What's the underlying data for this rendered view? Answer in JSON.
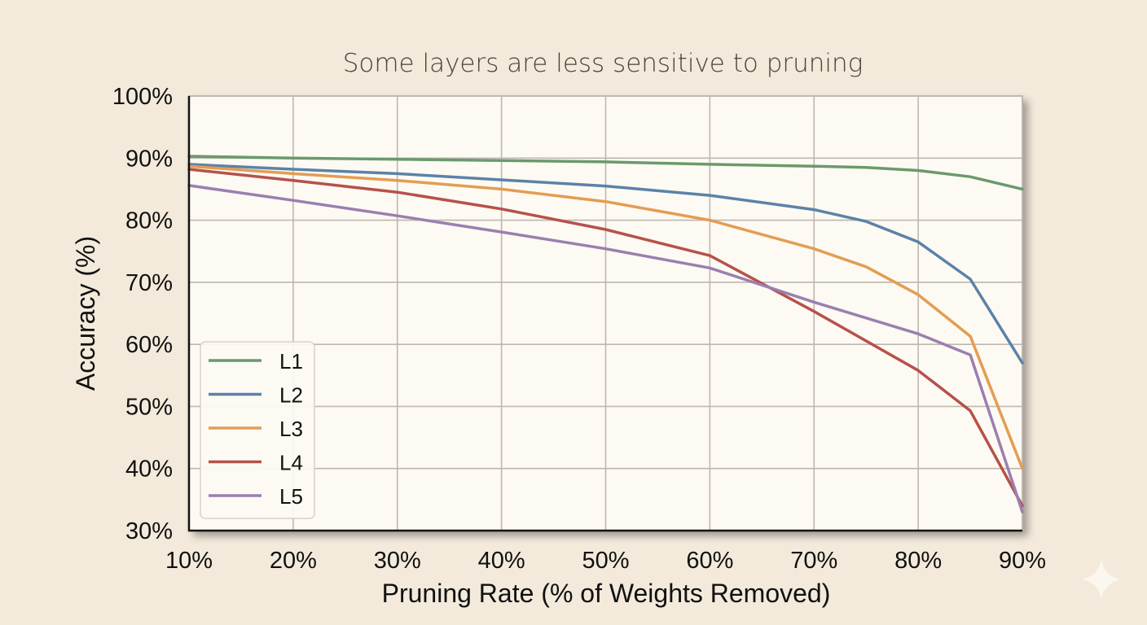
{
  "chart_data": {
    "type": "line",
    "title": "Some layers are less sensitive to pruning",
    "xlabel": "Pruning Rate (% of Weights Removed)",
    "ylabel": "Accuracy (%)",
    "xlim": [
      10,
      90
    ],
    "ylim": [
      30,
      100
    ],
    "x_ticks": [
      10,
      20,
      30,
      40,
      50,
      60,
      70,
      80,
      90
    ],
    "x_tick_labels": [
      "10%",
      "20%",
      "30%",
      "40%",
      "50%",
      "60%",
      "70%",
      "80%",
      "90%"
    ],
    "y_ticks": [
      30,
      40,
      50,
      60,
      70,
      80,
      90,
      100
    ],
    "y_tick_labels": [
      "30%",
      "40%",
      "50%",
      "60%",
      "70%",
      "80%",
      "90%",
      "100%"
    ],
    "grid": true,
    "legend_position": "lower-left",
    "series": [
      {
        "name": "L1",
        "color": "#6a9a6a",
        "x": [
          10,
          20,
          30,
          40,
          50,
          60,
          70,
          75,
          80,
          85,
          90
        ],
        "values": [
          90.3,
          90.0,
          89.8,
          89.6,
          89.4,
          89.0,
          88.7,
          88.5,
          88.0,
          87.0,
          85.0
        ]
      },
      {
        "name": "L2",
        "color": "#5b82a8",
        "x": [
          10,
          20,
          30,
          40,
          50,
          60,
          70,
          75,
          80,
          85,
          90
        ],
        "values": [
          89.0,
          88.2,
          87.5,
          86.5,
          85.5,
          84.0,
          81.7,
          79.8,
          76.5,
          70.5,
          57.0
        ]
      },
      {
        "name": "L3",
        "color": "#e39d52",
        "x": [
          10,
          20,
          30,
          40,
          50,
          60,
          70,
          75,
          80,
          85,
          90
        ],
        "values": [
          88.7,
          87.5,
          86.4,
          85.0,
          83.0,
          80.0,
          75.4,
          72.5,
          68.0,
          61.3,
          40.0
        ]
      },
      {
        "name": "L4",
        "color": "#b5524a",
        "x": [
          10,
          20,
          30,
          40,
          50,
          60,
          70,
          80,
          85,
          90
        ],
        "values": [
          88.2,
          86.4,
          84.5,
          81.8,
          78.5,
          74.3,
          65.3,
          55.8,
          49.3,
          34.0
        ]
      },
      {
        "name": "L5",
        "color": "#9a7fb0",
        "x": [
          10,
          20,
          30,
          40,
          50,
          60,
          70,
          80,
          85,
          90
        ],
        "values": [
          85.6,
          83.2,
          80.7,
          78.1,
          75.4,
          72.3,
          66.8,
          61.7,
          58.3,
          33.0
        ]
      }
    ]
  },
  "decoration": {
    "corner_icon": "sparkle-icon"
  }
}
